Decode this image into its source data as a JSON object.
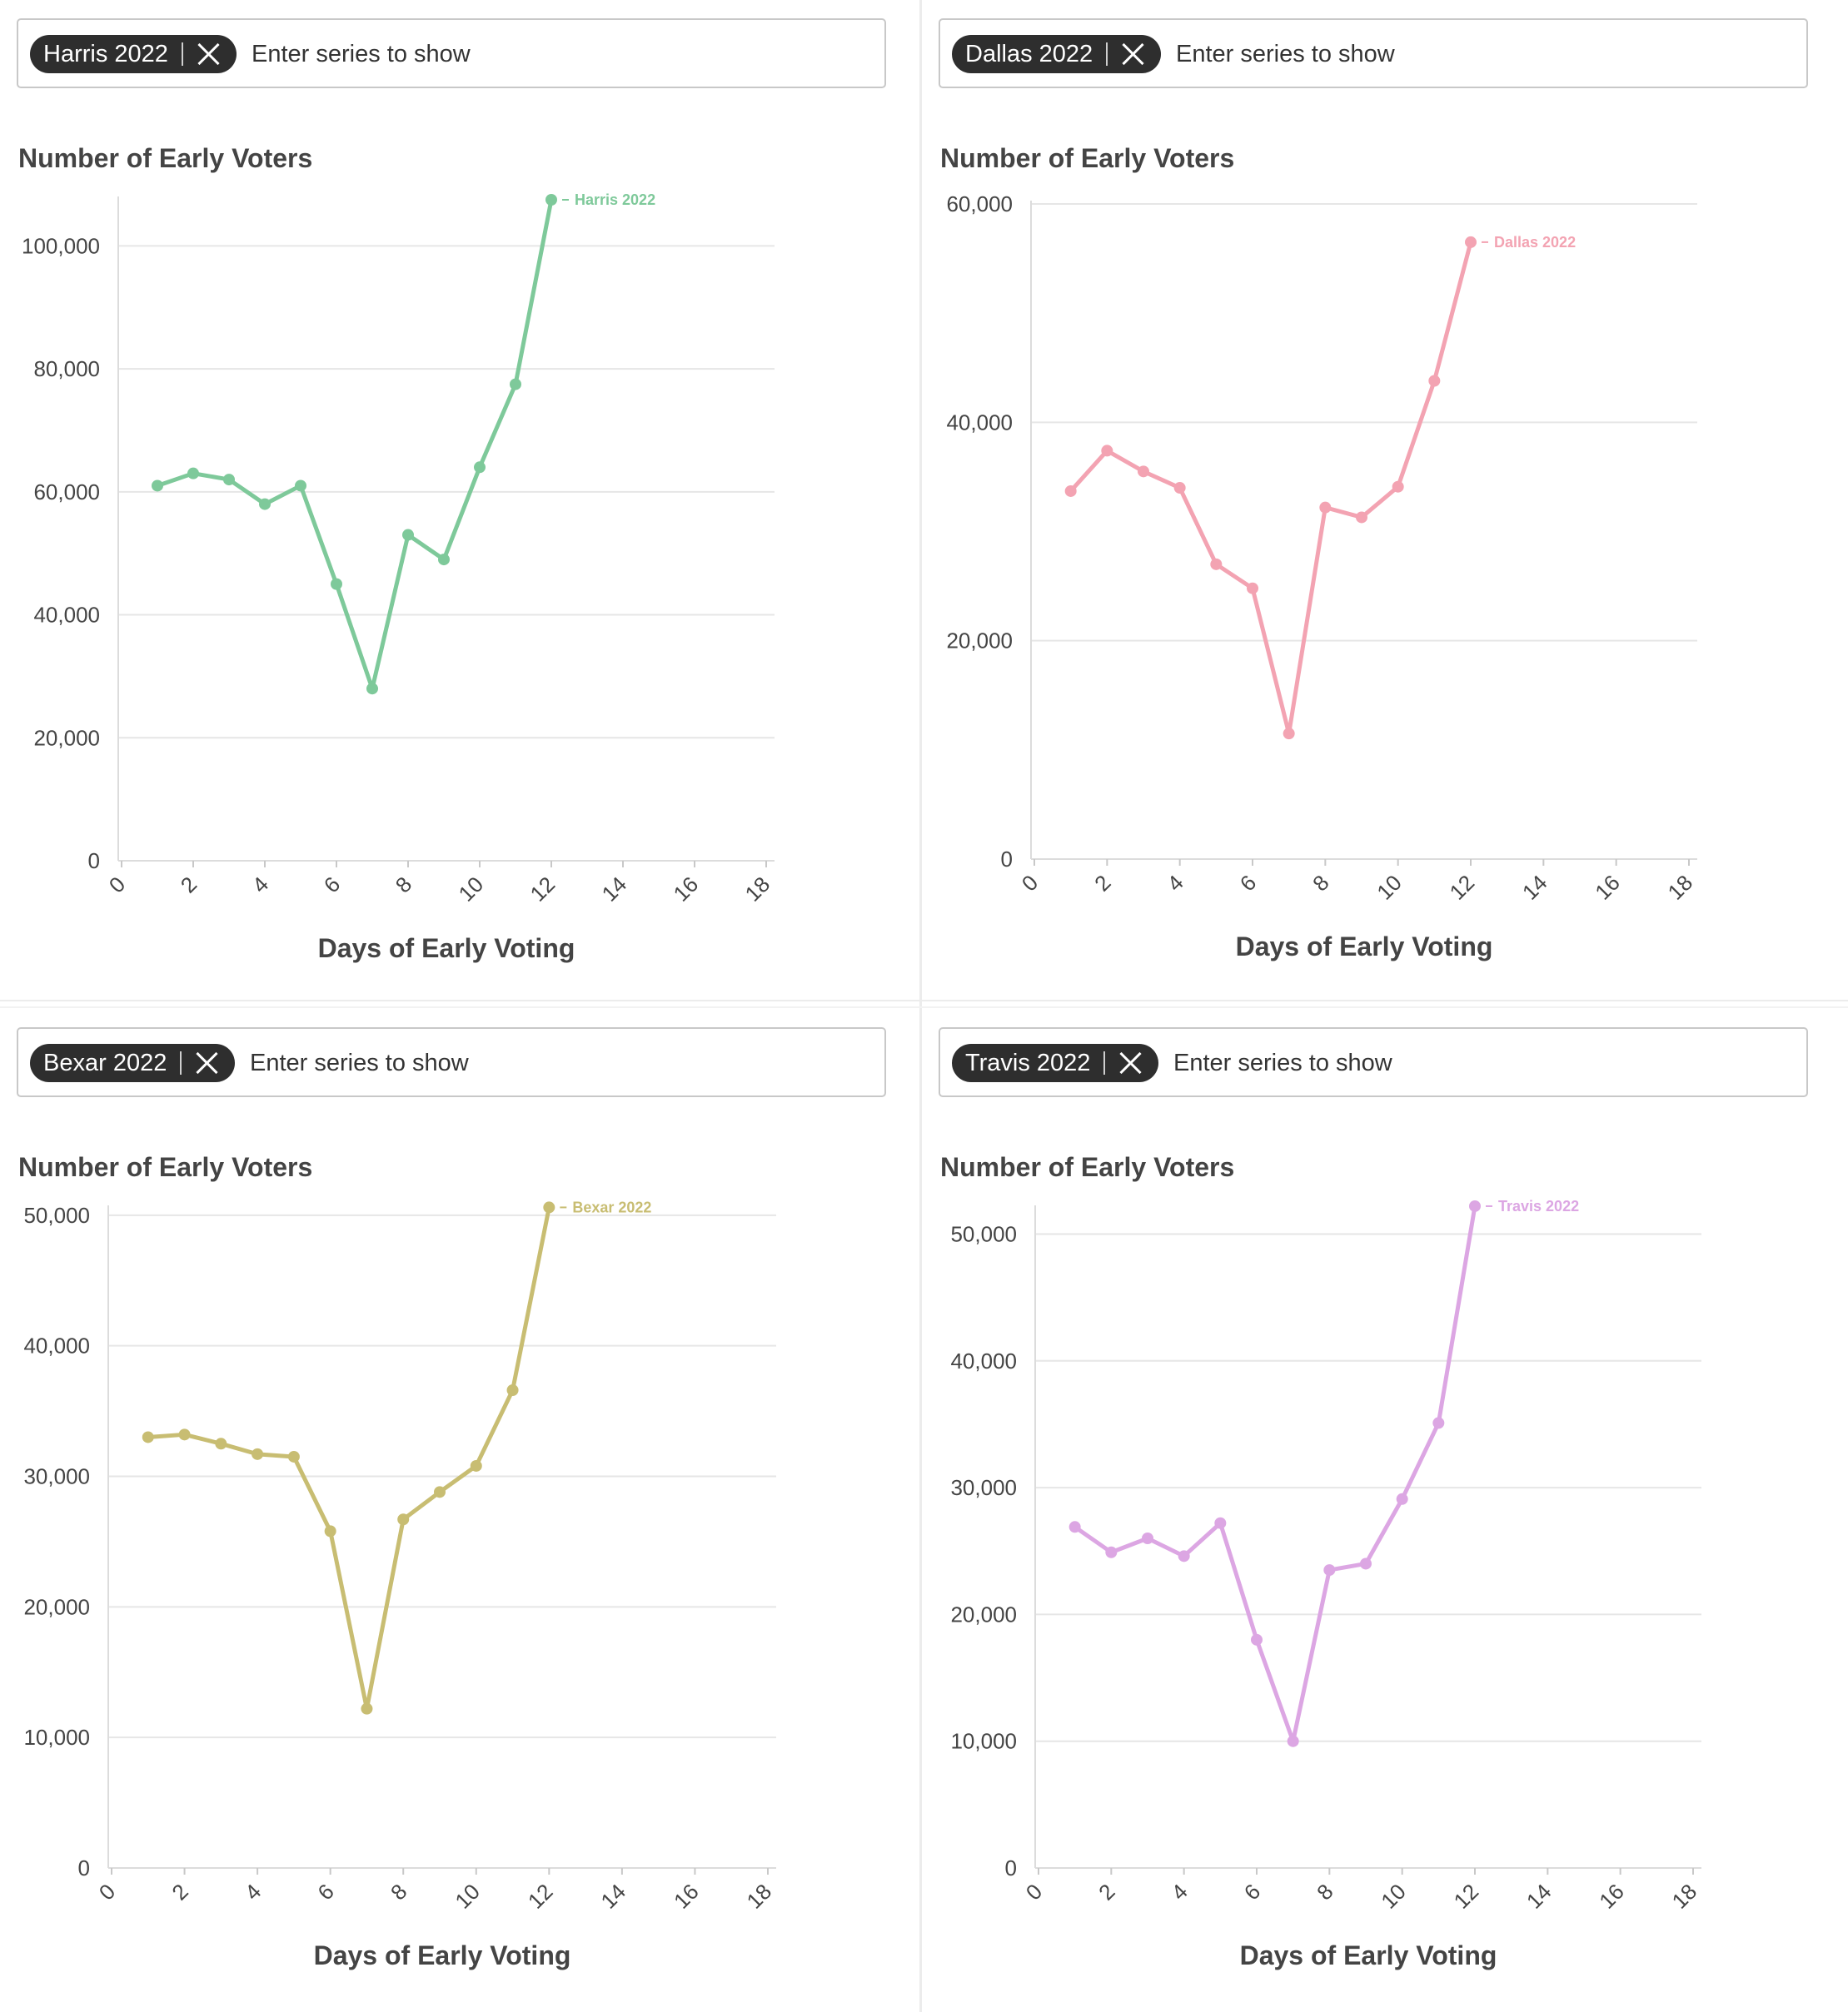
{
  "placeholder": "Enter series to show",
  "chart_data": [
    {
      "type": "line",
      "chip": "Harris 2022",
      "ytitle": "Number of Early Voters",
      "xlabel": "Days of Early Voting",
      "color": "#7ec99a",
      "xlim": [
        0,
        18
      ],
      "ylim": [
        0,
        107500
      ],
      "xticks": [
        0,
        2,
        4,
        6,
        8,
        10,
        12,
        14,
        16,
        18
      ],
      "yticks": [
        0,
        20000,
        40000,
        60000,
        80000,
        100000
      ],
      "ytick_labels": [
        "0",
        "20,000",
        "40,000",
        "60,000",
        "80,000",
        "100,000"
      ],
      "series": [
        {
          "name": "Harris 2022",
          "x": [
            1,
            2,
            3,
            4,
            5,
            6,
            7,
            8,
            9,
            10,
            11,
            12
          ],
          "values": [
            61000,
            63000,
            62000,
            58000,
            61000,
            45000,
            28000,
            53000,
            49000,
            64000,
            77500,
            107500
          ]
        }
      ]
    },
    {
      "type": "line",
      "chip": "Dallas 2022",
      "ytitle": "Number of Early Voters",
      "xlabel": "Days of Early Voting",
      "color": "#f3a3b2",
      "xlim": [
        0,
        18
      ],
      "ylim": [
        0,
        60000
      ],
      "xticks": [
        0,
        2,
        4,
        6,
        8,
        10,
        12,
        14,
        16,
        18
      ],
      "yticks": [
        0,
        20000,
        40000,
        60000
      ],
      "ytick_labels": [
        "0",
        "20,000",
        "40,000",
        "60,000"
      ],
      "series": [
        {
          "name": "Dallas 2022",
          "x": [
            1,
            2,
            3,
            4,
            5,
            6,
            7,
            8,
            9,
            10,
            11,
            12
          ],
          "values": [
            33700,
            37400,
            35500,
            34000,
            27000,
            24800,
            11500,
            32200,
            31300,
            34100,
            43800,
            56500
          ]
        }
      ]
    },
    {
      "type": "line",
      "chip": "Bexar 2022",
      "ytitle": "Number of Early Voters",
      "xlabel": "Days of Early Voting",
      "color": "#c8bd72",
      "xlim": [
        0,
        18
      ],
      "ylim": [
        0,
        50500
      ],
      "xticks": [
        0,
        2,
        4,
        6,
        8,
        10,
        12,
        14,
        16,
        18
      ],
      "yticks": [
        0,
        10000,
        20000,
        30000,
        40000,
        50000
      ],
      "ytick_labels": [
        "0",
        "10,000",
        "20,000",
        "30,000",
        "40,000",
        "50,000"
      ],
      "series": [
        {
          "name": "Bexar 2022",
          "x": [
            1,
            2,
            3,
            4,
            5,
            6,
            7,
            8,
            9,
            10,
            11,
            12
          ],
          "values": [
            33000,
            33200,
            32500,
            31700,
            31500,
            25800,
            12200,
            26700,
            28800,
            30800,
            36600,
            50600
          ]
        }
      ]
    },
    {
      "type": "line",
      "chip": "Travis 2022",
      "ytitle": "Number of Early Voters",
      "xlabel": "Days of Early Voting",
      "color": "#dca6e3",
      "xlim": [
        0,
        18
      ],
      "ylim": [
        0,
        52000
      ],
      "xticks": [
        0,
        2,
        4,
        6,
        8,
        10,
        12,
        14,
        16,
        18
      ],
      "yticks": [
        0,
        10000,
        20000,
        30000,
        40000,
        50000
      ],
      "ytick_labels": [
        "0",
        "10,000",
        "20,000",
        "30,000",
        "40,000",
        "50,000"
      ],
      "series": [
        {
          "name": "Travis 2022",
          "x": [
            1,
            2,
            3,
            4,
            5,
            6,
            7,
            8,
            9,
            10,
            11,
            12
          ],
          "values": [
            26900,
            24900,
            26000,
            24600,
            27200,
            18000,
            10000,
            23500,
            24000,
            29100,
            35100,
            52200
          ]
        }
      ]
    }
  ]
}
